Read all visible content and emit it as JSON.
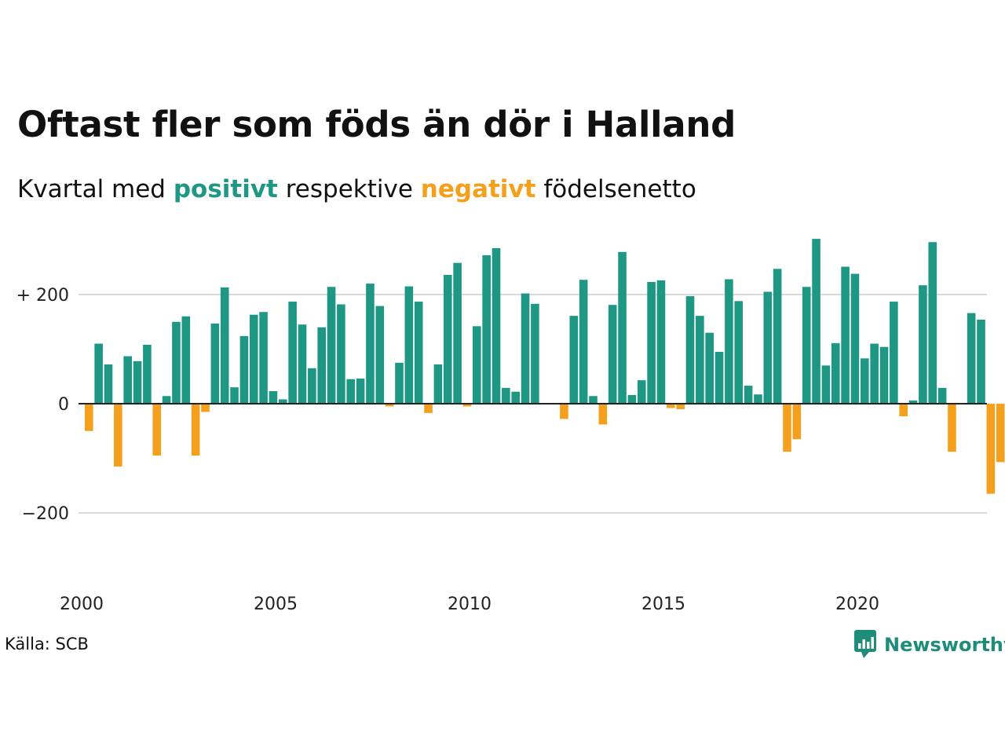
{
  "title": "Oftast fler som föds än dör i Halland",
  "subtitle": {
    "prefix": "Kvartal med ",
    "positive_word": "positivt",
    "middle": " respektive ",
    "negative_word": "negativt",
    "suffix": " födelsenetto"
  },
  "source": "Källa: SCB",
  "brand": "Newsworthy",
  "colors": {
    "positive": "#1e9885",
    "negative": "#f5a01d",
    "grid": "#d9d9d9",
    "brand": "#1e8c78"
  },
  "chart_data": {
    "type": "bar",
    "x_tick_labels": [
      "2000",
      "2005",
      "2010",
      "2015",
      "2020"
    ],
    "y_tick_labels": [
      "+ 200",
      "0",
      "−200"
    ],
    "y_ticks": [
      200,
      0,
      -200
    ],
    "ylim": [
      -320,
      320
    ],
    "start_year": 2000,
    "series": [
      {
        "values": [
          -50,
          110,
          72,
          -115,
          87,
          78,
          108,
          -95,
          14,
          150,
          160,
          -95,
          -15,
          147,
          213,
          30,
          124,
          163,
          168,
          23,
          8,
          187,
          145,
          65,
          140,
          214,
          182,
          45,
          46,
          220,
          179,
          -5,
          75,
          215,
          187,
          -17,
          72,
          236,
          258,
          -5,
          142,
          272,
          285,
          29,
          22,
          202,
          183,
          0,
          0,
          -28,
          161,
          227,
          14,
          -38,
          181,
          278,
          16,
          43,
          223,
          226,
          -8,
          -10,
          197,
          161,
          130,
          95,
          228,
          188,
          33,
          17,
          205,
          247,
          -88,
          -65,
          214,
          302,
          70,
          111,
          251,
          238,
          83,
          110,
          104,
          187,
          -23,
          6,
          217,
          296,
          29,
          -88,
          0,
          166,
          154,
          -165,
          -107
        ]
      }
    ]
  }
}
